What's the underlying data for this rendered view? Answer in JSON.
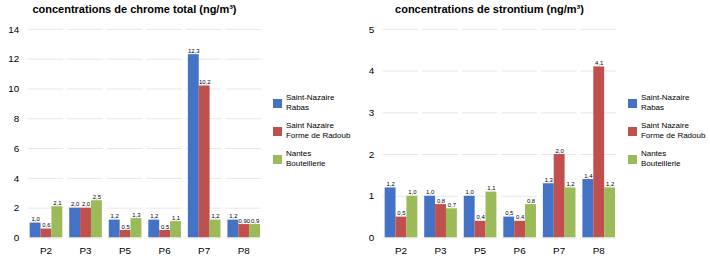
{
  "chart_data": [
    {
      "type": "bar",
      "title": "concentrations de chrome total (ng/m³)",
      "categories": [
        "P2",
        "P3",
        "P5",
        "P6",
        "P7",
        "P8"
      ],
      "series": [
        {
          "name": "Saint-Nazaire\nRabas",
          "color": "#4472C4",
          "values": [
            1.0,
            2.0,
            1.2,
            1.2,
            12.3,
            1.2
          ],
          "value_labels": [
            "1,0",
            "2,0",
            "1,2",
            "1,2",
            "12,3",
            "1,2"
          ]
        },
        {
          "name": "Saint Nazaire\nForme de Radoub",
          "color": "#C0504D",
          "values": [
            0.6,
            2.0,
            0.5,
            0.5,
            10.2,
            0.9
          ],
          "value_labels": [
            "0,6",
            "2,0",
            "0,5",
            "0,5",
            "10,2",
            "0,90"
          ]
        },
        {
          "name": "Nantes\nBouteillerie",
          "color": "#9BBB59",
          "values": [
            2.1,
            2.5,
            1.3,
            1.1,
            1.2,
            0.9
          ],
          "value_labels": [
            "2,1",
            "2,5",
            "1,3",
            "1,1",
            "1,2",
            "0,9"
          ]
        }
      ],
      "ylim": [
        0,
        14
      ],
      "yticks": [
        0,
        2,
        4,
        6,
        8,
        10,
        12,
        14
      ],
      "grid": true,
      "data_labels": true,
      "legend": "right"
    },
    {
      "type": "bar",
      "title": "concentrations de strontium (ng/m³)",
      "categories": [
        "P2",
        "P3",
        "P5",
        "P6",
        "P7",
        "P8"
      ],
      "series": [
        {
          "name": "Saint-Nazaire\nRabas",
          "color": "#4472C4",
          "values": [
            1.2,
            1.0,
            1.0,
            0.5,
            1.3,
            1.4
          ],
          "value_labels": [
            "1,2",
            "1,0",
            "1,0",
            "0,5",
            "1,3",
            "1,4"
          ]
        },
        {
          "name": "Saint Nazaire\nForme de Radoub",
          "color": "#C0504D",
          "values": [
            0.5,
            0.8,
            0.4,
            0.4,
            2.0,
            4.1
          ],
          "value_labels": [
            "0,5",
            "0,8",
            "0,4",
            "0,4",
            "2,0",
            "4,1"
          ]
        },
        {
          "name": "Nantes\nBouteillerie",
          "color": "#9BBB59",
          "values": [
            1.0,
            0.7,
            1.1,
            0.8,
            1.2,
            1.2
          ],
          "value_labels": [
            "1,0",
            "0,7",
            "1,1",
            "0,8",
            "1,2",
            "1,2"
          ]
        }
      ],
      "ylim": [
        0,
        5
      ],
      "yticks": [
        0,
        1,
        2,
        3,
        4,
        5
      ],
      "grid": true,
      "data_labels": true,
      "legend": "right"
    }
  ]
}
